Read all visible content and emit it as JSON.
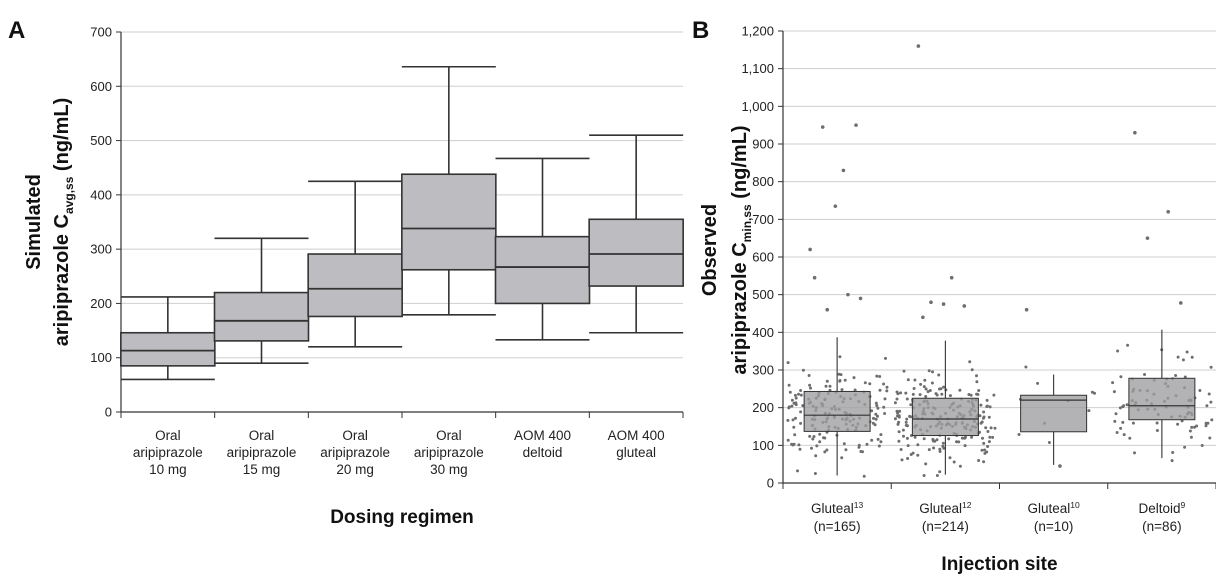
{
  "chart_data": [
    {
      "panel_label": "A",
      "type": "box",
      "xlabel": "Dosing regimen",
      "ylabel_line1": "Simulated",
      "ylabel_line2_main": "aripiprazole C",
      "ylabel_line2_sub": "avg,ss",
      "ylabel_line2_unit": " (ng/mL)",
      "ylim": [
        0,
        700
      ],
      "yticks": [
        "0",
        "100",
        "200",
        "300",
        "400",
        "500",
        "600",
        "700"
      ],
      "grid": true,
      "box_color": "#bdbdc1",
      "categories": [
        [
          "Oral",
          "aripiprazole",
          "10 mg"
        ],
        [
          "Oral",
          "aripiprazole",
          "15 mg"
        ],
        [
          "Oral",
          "aripiprazole",
          "20 mg"
        ],
        [
          "Oral",
          "aripiprazole",
          "30 mg"
        ],
        [
          "AOM 400",
          "deltoid"
        ],
        [
          "AOM 400",
          "gluteal"
        ]
      ],
      "boxes": [
        {
          "min": 60,
          "q1": 85,
          "median": 113,
          "q3": 146,
          "max": 212
        },
        {
          "min": 90,
          "q1": 131,
          "median": 168,
          "q3": 220,
          "max": 320
        },
        {
          "min": 120,
          "q1": 176,
          "median": 227,
          "q3": 291,
          "max": 425
        },
        {
          "min": 179,
          "q1": 262,
          "median": 338,
          "q3": 438,
          "max": 636
        },
        {
          "min": 133,
          "q1": 200,
          "median": 267,
          "q3": 323,
          "max": 467
        },
        {
          "min": 146,
          "q1": 232,
          "median": 291,
          "q3": 355,
          "max": 510
        }
      ]
    },
    {
      "panel_label": "B",
      "type": "box",
      "xlabel": "Injection site",
      "ylabel_line1": "Observed",
      "ylabel_line2_main": "aripiprazole C",
      "ylabel_line2_sub": "min,ss",
      "ylabel_line2_unit": " (ng/mL)",
      "ylim": [
        0,
        1200
      ],
      "yticks": [
        "0",
        "100",
        "200",
        "300",
        "400",
        "500",
        "600",
        "700",
        "800",
        "900",
        "1,000",
        "1,100",
        "1,200"
      ],
      "grid": true,
      "box_color": "#9d9da1",
      "point_color": "#6e6e6e",
      "categories": [
        {
          "name": "Gluteal",
          "ref": "13",
          "n": "(n=165)"
        },
        {
          "name": "Gluteal",
          "ref": "12",
          "n": "(n=214)"
        },
        {
          "name": "Gluteal",
          "ref": "10",
          "n": "(n=10)"
        },
        {
          "name": "Deltoid",
          "ref": "9",
          "n": "(n=86)"
        }
      ],
      "boxes": [
        {
          "min": 20,
          "q1": 137,
          "median": 180,
          "q3": 243,
          "max": 387
        },
        {
          "min": 22,
          "q1": 126,
          "median": 170,
          "q3": 225,
          "max": 378
        },
        {
          "min": 48,
          "q1": 136,
          "median": 220,
          "q3": 233,
          "max": 288
        },
        {
          "min": 66,
          "q1": 168,
          "median": 205,
          "q3": 278,
          "max": 407
        }
      ],
      "outliers": [
        {
          "group": 0,
          "values": [
            620,
            830,
            945,
            950,
            735,
            545,
            500,
            460,
            490
          ]
        },
        {
          "group": 1,
          "values": [
            1160,
            545,
            480,
            470,
            475,
            440
          ]
        },
        {
          "group": 2,
          "values": [
            460,
            45
          ]
        },
        {
          "group": 3,
          "values": [
            930,
            720,
            650,
            478
          ]
        }
      ]
    }
  ]
}
